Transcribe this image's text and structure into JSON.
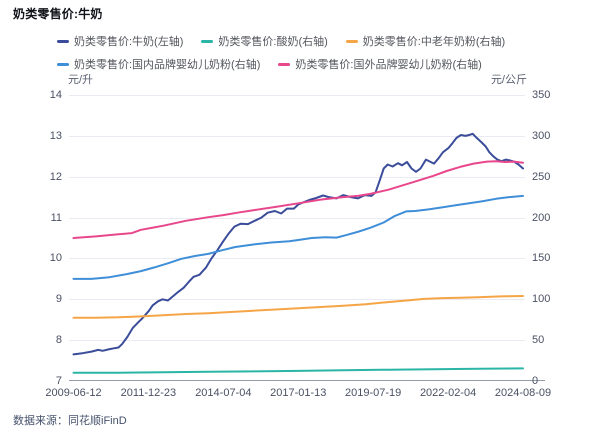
{
  "title": "奶类零售价:牛奶",
  "units": {
    "left": "元/升",
    "right": "元/公斤"
  },
  "source": "数据来源：同花顺iFinD",
  "legend": {
    "row_break": 3
  },
  "chart_data": {
    "type": "line",
    "title": "奶类零售价:牛奶",
    "grid": true,
    "legend_position": "top",
    "x_tick_labels": [
      "2009-06-12",
      "2011-12-23",
      "2014-07-04",
      "2017-01-13",
      "2019-07-19",
      "2022-02-04",
      "2024-08-09"
    ],
    "left_axis": {
      "unit": "元/升",
      "min": 7,
      "max": 14,
      "ticks": [
        "14",
        "13",
        "12",
        "11",
        "10",
        "9",
        "8",
        "7"
      ]
    },
    "right_axis": {
      "unit": "元/公斤",
      "min": 0,
      "max": 350,
      "ticks": [
        "350",
        "300",
        "250",
        "200",
        "150",
        "100",
        "50",
        "0"
      ]
    },
    "x_range_note": "t is fractional time from 2009-06-12 (0) to 2024-08-09 (1)",
    "series": [
      {
        "name": "奶类零售价:牛奶",
        "legend_label": "奶类零售价:牛奶(左轴)",
        "axis": "left",
        "color": "#3b4d9a",
        "points": [
          [
            0,
            7.65
          ],
          [
            0.02,
            7.68
          ],
          [
            0.04,
            7.72
          ],
          [
            0.055,
            7.76
          ],
          [
            0.065,
            7.74
          ],
          [
            0.08,
            7.78
          ],
          [
            0.09,
            7.8
          ],
          [
            0.1,
            7.82
          ],
          [
            0.108,
            7.9
          ],
          [
            0.12,
            8.08
          ],
          [
            0.132,
            8.3
          ],
          [
            0.145,
            8.45
          ],
          [
            0.152,
            8.52
          ],
          [
            0.16,
            8.62
          ],
          [
            0.168,
            8.72
          ],
          [
            0.176,
            8.85
          ],
          [
            0.188,
            8.95
          ],
          [
            0.198,
            9.0
          ],
          [
            0.21,
            8.97
          ],
          [
            0.222,
            9.08
          ],
          [
            0.233,
            9.18
          ],
          [
            0.245,
            9.28
          ],
          [
            0.256,
            9.42
          ],
          [
            0.267,
            9.55
          ],
          [
            0.28,
            9.6
          ],
          [
            0.295,
            9.78
          ],
          [
            0.307,
            10.0
          ],
          [
            0.32,
            10.2
          ],
          [
            0.333,
            10.42
          ],
          [
            0.346,
            10.62
          ],
          [
            0.358,
            10.78
          ],
          [
            0.372,
            10.85
          ],
          [
            0.388,
            10.84
          ],
          [
            0.403,
            10.92
          ],
          [
            0.418,
            11.0
          ],
          [
            0.432,
            11.12
          ],
          [
            0.448,
            11.16
          ],
          [
            0.462,
            11.1
          ],
          [
            0.475,
            11.22
          ],
          [
            0.49,
            11.22
          ],
          [
            0.5,
            11.32
          ],
          [
            0.513,
            11.38
          ],
          [
            0.527,
            11.44
          ],
          [
            0.54,
            11.48
          ],
          [
            0.555,
            11.54
          ],
          [
            0.568,
            11.5
          ],
          [
            0.585,
            11.47
          ],
          [
            0.6,
            11.55
          ],
          [
            0.617,
            11.5
          ],
          [
            0.633,
            11.47
          ],
          [
            0.648,
            11.55
          ],
          [
            0.663,
            11.53
          ],
          [
            0.672,
            11.62
          ],
          [
            0.681,
            11.9
          ],
          [
            0.69,
            12.2
          ],
          [
            0.699,
            12.3
          ],
          [
            0.71,
            12.25
          ],
          [
            0.722,
            12.33
          ],
          [
            0.731,
            12.28
          ],
          [
            0.742,
            12.36
          ],
          [
            0.752,
            12.2
          ],
          [
            0.762,
            12.12
          ],
          [
            0.772,
            12.2
          ],
          [
            0.784,
            12.42
          ],
          [
            0.793,
            12.37
          ],
          [
            0.802,
            12.32
          ],
          [
            0.812,
            12.45
          ],
          [
            0.822,
            12.6
          ],
          [
            0.834,
            12.7
          ],
          [
            0.843,
            12.82
          ],
          [
            0.852,
            12.95
          ],
          [
            0.862,
            13.02
          ],
          [
            0.872,
            13.0
          ],
          [
            0.88,
            13.02
          ],
          [
            0.888,
            13.05
          ],
          [
            0.897,
            12.95
          ],
          [
            0.907,
            12.85
          ],
          [
            0.917,
            12.74
          ],
          [
            0.925,
            12.6
          ],
          [
            0.934,
            12.5
          ],
          [
            0.943,
            12.42
          ],
          [
            0.952,
            12.38
          ],
          [
            0.962,
            12.42
          ],
          [
            0.97,
            12.4
          ],
          [
            0.98,
            12.37
          ],
          [
            0.99,
            12.3
          ],
          [
            1,
            12.2
          ]
        ]
      },
      {
        "name": "奶类零售价:酸奶",
        "legend_label": "奶类零售价:酸奶(右轴)",
        "axis": "right",
        "color": "#2bb5a6",
        "points": [
          [
            0,
            10
          ],
          [
            0.1,
            10.2
          ],
          [
            0.2,
            10.8
          ],
          [
            0.3,
            11.2
          ],
          [
            0.4,
            11.8
          ],
          [
            0.5,
            12.3
          ],
          [
            0.6,
            13.2
          ],
          [
            0.7,
            13.8
          ],
          [
            0.8,
            14.4
          ],
          [
            0.9,
            15
          ],
          [
            1,
            15.4
          ]
        ]
      },
      {
        "name": "奶类零售价:中老年奶粉",
        "legend_label": "奶类零售价:中老年奶粉(右轴)",
        "axis": "right",
        "color": "#f6a546",
        "points": [
          [
            0,
            77.5
          ],
          [
            0.05,
            77.5
          ],
          [
            0.1,
            78
          ],
          [
            0.15,
            79
          ],
          [
            0.2,
            80.5
          ],
          [
            0.25,
            82
          ],
          [
            0.3,
            83
          ],
          [
            0.35,
            84.5
          ],
          [
            0.4,
            86
          ],
          [
            0.45,
            87.5
          ],
          [
            0.5,
            89
          ],
          [
            0.55,
            90.5
          ],
          [
            0.6,
            92
          ],
          [
            0.65,
            94
          ],
          [
            0.7,
            96.5
          ],
          [
            0.75,
            99
          ],
          [
            0.78,
            100.5
          ],
          [
            0.82,
            101.5
          ],
          [
            0.86,
            102
          ],
          [
            0.9,
            102.5
          ],
          [
            0.95,
            103.5
          ],
          [
            1,
            104
          ]
        ]
      },
      {
        "name": "奶类零售价:国内品牌婴幼儿奶粉",
        "legend_label": "奶类零售价:国内品牌婴幼儿奶粉(右轴)",
        "axis": "right",
        "color": "#3f8ed8",
        "points": [
          [
            0,
            125
          ],
          [
            0.04,
            125
          ],
          [
            0.08,
            127
          ],
          [
            0.12,
            131
          ],
          [
            0.15,
            134.5
          ],
          [
            0.18,
            139
          ],
          [
            0.21,
            144
          ],
          [
            0.24,
            149.5
          ],
          [
            0.27,
            153
          ],
          [
            0.3,
            155.5
          ],
          [
            0.33,
            160
          ],
          [
            0.36,
            164
          ],
          [
            0.4,
            167
          ],
          [
            0.44,
            169.5
          ],
          [
            0.48,
            171
          ],
          [
            0.5,
            172.5
          ],
          [
            0.53,
            175
          ],
          [
            0.56,
            176
          ],
          [
            0.585,
            175.5
          ],
          [
            0.61,
            179
          ],
          [
            0.635,
            183
          ],
          [
            0.66,
            187.5
          ],
          [
            0.69,
            194
          ],
          [
            0.715,
            202
          ],
          [
            0.74,
            207.5
          ],
          [
            0.76,
            208
          ],
          [
            0.79,
            210
          ],
          [
            0.82,
            212.5
          ],
          [
            0.85,
            215
          ],
          [
            0.88,
            217.5
          ],
          [
            0.91,
            220
          ],
          [
            0.94,
            223
          ],
          [
            0.97,
            225
          ],
          [
            1,
            226.5
          ]
        ]
      },
      {
        "name": "奶类零售价:国外品牌婴幼儿奶粉",
        "legend_label": "奶类零售价:国外品牌婴幼儿奶粉(右轴)",
        "axis": "right",
        "color": "#e8478c",
        "points": [
          [
            0,
            175
          ],
          [
            0.05,
            177
          ],
          [
            0.1,
            179.5
          ],
          [
            0.13,
            181
          ],
          [
            0.15,
            185
          ],
          [
            0.18,
            188
          ],
          [
            0.2,
            190
          ],
          [
            0.25,
            196
          ],
          [
            0.3,
            200.5
          ],
          [
            0.333,
            203
          ],
          [
            0.37,
            206.5
          ],
          [
            0.4,
            209
          ],
          [
            0.45,
            213
          ],
          [
            0.5,
            217.5
          ],
          [
            0.55,
            222
          ],
          [
            0.6,
            225
          ],
          [
            0.633,
            226.5
          ],
          [
            0.66,
            229
          ],
          [
            0.68,
            231.5
          ],
          [
            0.7,
            234
          ],
          [
            0.73,
            239
          ],
          [
            0.76,
            244
          ],
          [
            0.8,
            251
          ],
          [
            0.83,
            257
          ],
          [
            0.86,
            262
          ],
          [
            0.89,
            266
          ],
          [
            0.92,
            268.5
          ],
          [
            0.94,
            269
          ],
          [
            0.96,
            268
          ],
          [
            0.98,
            268.5
          ],
          [
            1,
            267
          ]
        ]
      }
    ]
  }
}
